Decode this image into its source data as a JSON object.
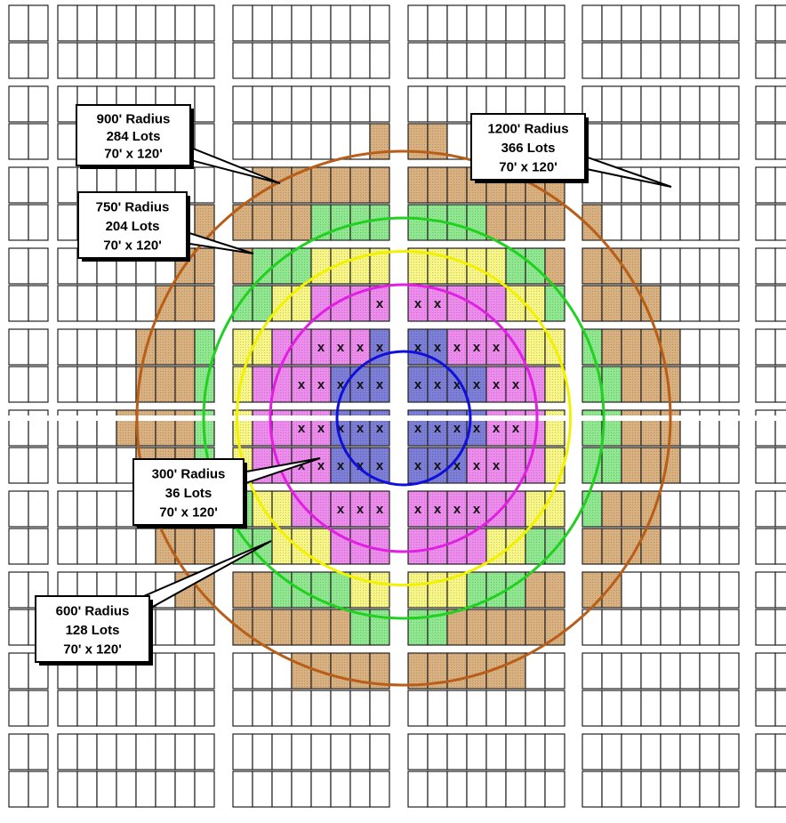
{
  "colors": {
    "zone_blue": "#7d7ed8",
    "zone_magenta": "#ee8cee",
    "zone_yellow": "#f6f585",
    "zone_green": "#8fe88f",
    "zone_tan": "#d9b07f",
    "lot_outline": "#222222",
    "ring_300": "#1010d8",
    "ring_600": "#e020e0",
    "ring_750": "#f2f200",
    "ring_900": "#22d022",
    "ring_1200": "#b85e18"
  },
  "zones": [
    {
      "id": "r300",
      "radius_ft": 300,
      "lots": 36
    },
    {
      "id": "r600",
      "radius_ft": 600,
      "lots": 128
    },
    {
      "id": "r750",
      "radius_ft": 750,
      "lots": 204
    },
    {
      "id": "r900",
      "radius_ft": 900,
      "lots": 284
    },
    {
      "id": "r1200",
      "radius_ft": 1200,
      "lots": 366
    }
  ],
  "callouts": [
    {
      "id": "c900",
      "lines": [
        "900' Radius",
        "284 Lots",
        "70' x 120'"
      ]
    },
    {
      "id": "c750",
      "lines": [
        "750' Radius",
        "204 Lots",
        "70' x 120'"
      ]
    },
    {
      "id": "c1200",
      "lines": [
        "1200' Radius",
        "366 Lots",
        "70' x 120'"
      ]
    },
    {
      "id": "c300",
      "lines": [
        "300' Radius",
        "36 Lots",
        "70' x 120'"
      ]
    },
    {
      "id": "c600",
      "lines": [
        "600' Radius",
        "128 Lots",
        "70' x 120'"
      ]
    }
  ],
  "lot_marker": "x"
}
